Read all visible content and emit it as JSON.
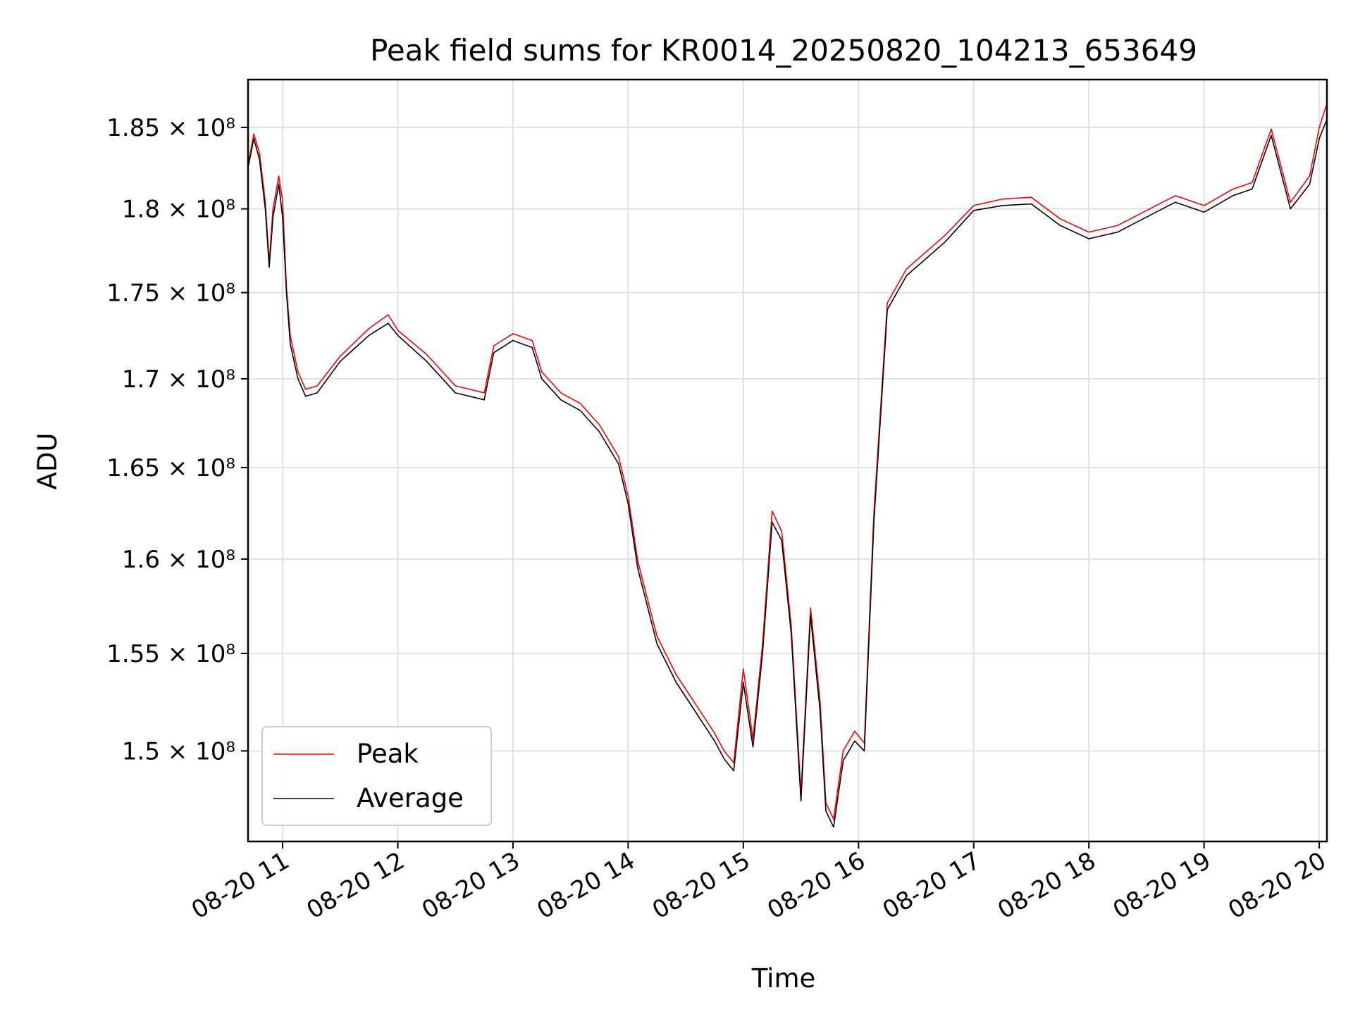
{
  "chart_data": {
    "type": "line",
    "title": "Peak field sums for KR0014_20250820_104213_653649",
    "xlabel": "Time",
    "ylabel": "ADU",
    "grid": true,
    "legend_position": "lower-left",
    "xlim": [
      "2025-08-20 10:42",
      "2025-08-20 20:04"
    ],
    "ylim": [
      145500000,
      188000000
    ],
    "y_scale": "log",
    "x_ticks": [
      {
        "t": "2025-08-20 11:00",
        "label": "08-20 11"
      },
      {
        "t": "2025-08-20 12:00",
        "label": "08-20 12"
      },
      {
        "t": "2025-08-20 13:00",
        "label": "08-20 13"
      },
      {
        "t": "2025-08-20 14:00",
        "label": "08-20 14"
      },
      {
        "t": "2025-08-20 15:00",
        "label": "08-20 15"
      },
      {
        "t": "2025-08-20 16:00",
        "label": "08-20 16"
      },
      {
        "t": "2025-08-20 17:00",
        "label": "08-20 17"
      },
      {
        "t": "2025-08-20 18:00",
        "label": "08-20 18"
      },
      {
        "t": "2025-08-20 19:00",
        "label": "08-20 19"
      },
      {
        "t": "2025-08-20 20:00",
        "label": "08-20 20"
      }
    ],
    "y_ticks": [
      {
        "v": 150000000,
        "label": "1.5 × 10⁸"
      },
      {
        "v": 155000000,
        "label": "1.55 × 10⁸"
      },
      {
        "v": 160000000,
        "label": "1.6 × 10⁸"
      },
      {
        "v": 165000000,
        "label": "1.65 × 10⁸"
      },
      {
        "v": 170000000,
        "label": "1.7 × 10⁸"
      },
      {
        "v": 175000000,
        "label": "1.75 × 10⁸"
      },
      {
        "v": 180000000,
        "label": "1.8 × 10⁸"
      },
      {
        "v": 185000000,
        "label": "1.85 × 10⁸"
      }
    ],
    "x": [
      "2025-08-20 10:42",
      "2025-08-20 10:45",
      "2025-08-20 10:48",
      "2025-08-20 10:51",
      "2025-08-20 10:53",
      "2025-08-20 10:55",
      "2025-08-20 10:58",
      "2025-08-20 11:00",
      "2025-08-20 11:02",
      "2025-08-20 11:04",
      "2025-08-20 11:08",
      "2025-08-20 11:12",
      "2025-08-20 11:18",
      "2025-08-20 11:30",
      "2025-08-20 11:45",
      "2025-08-20 11:55",
      "2025-08-20 12:00",
      "2025-08-20 12:15",
      "2025-08-20 12:30",
      "2025-08-20 12:45",
      "2025-08-20 12:50",
      "2025-08-20 13:00",
      "2025-08-20 13:10",
      "2025-08-20 13:15",
      "2025-08-20 13:25",
      "2025-08-20 13:35",
      "2025-08-20 13:45",
      "2025-08-20 13:55",
      "2025-08-20 14:00",
      "2025-08-20 14:05",
      "2025-08-20 14:15",
      "2025-08-20 14:25",
      "2025-08-20 14:35",
      "2025-08-20 14:45",
      "2025-08-20 14:50",
      "2025-08-20 14:55",
      "2025-08-20 15:00",
      "2025-08-20 15:05",
      "2025-08-20 15:10",
      "2025-08-20 15:15",
      "2025-08-20 15:20",
      "2025-08-20 15:25",
      "2025-08-20 15:30",
      "2025-08-20 15:35",
      "2025-08-20 15:40",
      "2025-08-20 15:43",
      "2025-08-20 15:47",
      "2025-08-20 15:52",
      "2025-08-20 15:58",
      "2025-08-20 16:03",
      "2025-08-20 16:08",
      "2025-08-20 16:15",
      "2025-08-20 16:25",
      "2025-08-20 16:45",
      "2025-08-20 17:00",
      "2025-08-20 17:15",
      "2025-08-20 17:30",
      "2025-08-20 17:45",
      "2025-08-20 18:00",
      "2025-08-20 18:15",
      "2025-08-20 18:30",
      "2025-08-20 18:45",
      "2025-08-20 19:00",
      "2025-08-20 19:15",
      "2025-08-20 19:25",
      "2025-08-20 19:35",
      "2025-08-20 19:45",
      "2025-08-20 19:55",
      "2025-08-20 20:00",
      "2025-08-20 20:04"
    ],
    "series": [
      {
        "name": "Average",
        "color": "#000000",
        "values": [
          182500000,
          184300000,
          183000000,
          180000000,
          176500000,
          179500000,
          181500000,
          179500000,
          175000000,
          172000000,
          170000000,
          169000000,
          169200000,
          171000000,
          172500000,
          173200000,
          172500000,
          171000000,
          169200000,
          168800000,
          171500000,
          172200000,
          171800000,
          170000000,
          168800000,
          168200000,
          167000000,
          165200000,
          163000000,
          159500000,
          155500000,
          153500000,
          152000000,
          150500000,
          149600000,
          149000000,
          153500000,
          150200000,
          155000000,
          162000000,
          161000000,
          156000000,
          147500000,
          157000000,
          152000000,
          147000000,
          146200000,
          149500000,
          150500000,
          150000000,
          162000000,
          174000000,
          176000000,
          178000000,
          179900000,
          180200000,
          180300000,
          179000000,
          178200000,
          178600000,
          179500000,
          180400000,
          179800000,
          180800000,
          181200000,
          184500000,
          180000000,
          181500000,
          184300000,
          185500000
        ]
      },
      {
        "name": "Peak",
        "color": "#ff0000",
        "values": [
          182700000,
          184600000,
          183400000,
          180400000,
          176800000,
          180000000,
          182000000,
          180500000,
          175300000,
          172500000,
          170400000,
          169400000,
          169600000,
          171300000,
          172900000,
          173700000,
          172800000,
          171400000,
          169600000,
          169200000,
          171900000,
          172600000,
          172200000,
          170400000,
          169200000,
          168600000,
          167400000,
          165600000,
          163400000,
          159900000,
          155900000,
          153900000,
          152400000,
          150900000,
          150000000,
          149400000,
          154200000,
          150600000,
          155500000,
          162600000,
          161500000,
          156400000,
          147900000,
          157400000,
          152500000,
          147400000,
          146600000,
          150000000,
          151000000,
          150400000,
          162500000,
          174400000,
          176400000,
          178400000,
          180200000,
          180600000,
          180700000,
          179400000,
          178600000,
          179000000,
          179900000,
          180800000,
          180200000,
          181200000,
          181600000,
          184900000,
          180400000,
          182000000,
          185000000,
          186500000
        ]
      }
    ]
  },
  "legend": {
    "items": [
      {
        "label": "Peak",
        "color": "#ff0000"
      },
      {
        "label": "Average",
        "color": "#000000"
      }
    ]
  }
}
